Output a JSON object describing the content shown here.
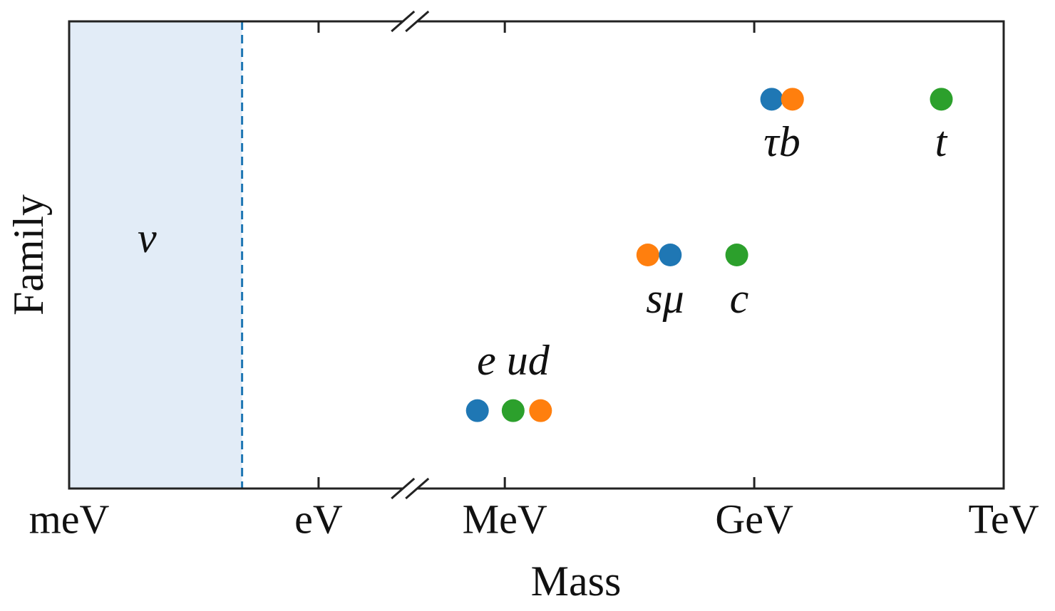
{
  "chart_data": {
    "type": "scatter",
    "xlabel": "Mass",
    "ylabel": "Family",
    "xlim": [
      -3,
      12
    ],
    "xticks": [
      {
        "value": -3,
        "label": "meV"
      },
      {
        "value": 0,
        "label": "eV"
      },
      {
        "value": 6,
        "label": "MeV"
      },
      {
        "value": 9,
        "label": "GeV"
      },
      {
        "value": 12,
        "label": "TeV"
      }
    ],
    "axis_break": [
      1.1,
      4.86
    ],
    "ylim": [
      0.5,
      3.5
    ],
    "shaded_region": {
      "x": [
        -3,
        -0.92
      ],
      "color": "#e2ecf7",
      "edge_color": "#1f77b4",
      "label": "ν"
    },
    "points": {
      "x": [
        5.67,
        6.1,
        6.43,
        7.72,
        7.99,
        8.79,
        9.21,
        9.46,
        11.25
      ],
      "y": [
        1,
        1,
        1,
        2,
        2,
        2,
        3,
        3,
        3
      ],
      "colors": [
        "#1f77b4",
        "#2ca02c",
        "#ff7f0e",
        "#ff7f0e",
        "#1f77b4",
        "#2ca02c",
        "#1f77b4",
        "#ff7f0e",
        "#2ca02c"
      ]
    },
    "annotations": [
      "e ud",
      "sμ",
      "c",
      "τb",
      "t"
    ]
  }
}
